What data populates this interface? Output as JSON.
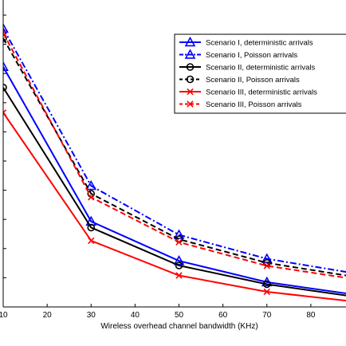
{
  "chart_data": {
    "type": "line",
    "xlabel": "Wireless overhead channel bandwidth (KHz)",
    "ylabel": "",
    "xlim": [
      10,
      88
    ],
    "ylim": [
      0,
      1
    ],
    "x_ticks": [
      "10",
      "20",
      "30",
      "40",
      "50",
      "60",
      "70",
      "80"
    ],
    "grid": false,
    "legend_position": "top-right",
    "x": [
      10,
      30,
      50,
      70,
      90
    ],
    "series": [
      {
        "name": "Scenario I, deterministic arrivals",
        "color": "#0000ff",
        "dash": "solid",
        "marker": "triangle",
        "values": [
          0.823,
          0.293,
          0.158,
          0.085,
          0.042
        ]
      },
      {
        "name": "Scenario I, Poisson arrivals",
        "color": "#0000ff",
        "dash": "dashdot",
        "marker": "triangle",
        "values": [
          0.954,
          0.415,
          0.247,
          0.165,
          0.115
        ]
      },
      {
        "name": "Scenario II, deterministic arrivals",
        "color": "#000000",
        "dash": "solid",
        "marker": "circle",
        "values": [
          0.752,
          0.272,
          0.142,
          0.078,
          0.035
        ]
      },
      {
        "name": "Scenario II, Poisson arrivals",
        "color": "#000000",
        "dash": "dashed",
        "marker": "circle",
        "values": [
          0.921,
          0.388,
          0.232,
          0.151,
          0.103
        ]
      },
      {
        "name": "Scenario III, deterministic arrivals",
        "color": "#ff0000",
        "dash": "solid",
        "marker": "x",
        "values": [
          0.666,
          0.227,
          0.108,
          0.052,
          0.018
        ]
      },
      {
        "name": "Scenario III, Poisson arrivals",
        "color": "#ff0000",
        "dash": "dashed",
        "marker": "x",
        "values": [
          0.939,
          0.376,
          0.222,
          0.141,
          0.095
        ]
      }
    ]
  }
}
